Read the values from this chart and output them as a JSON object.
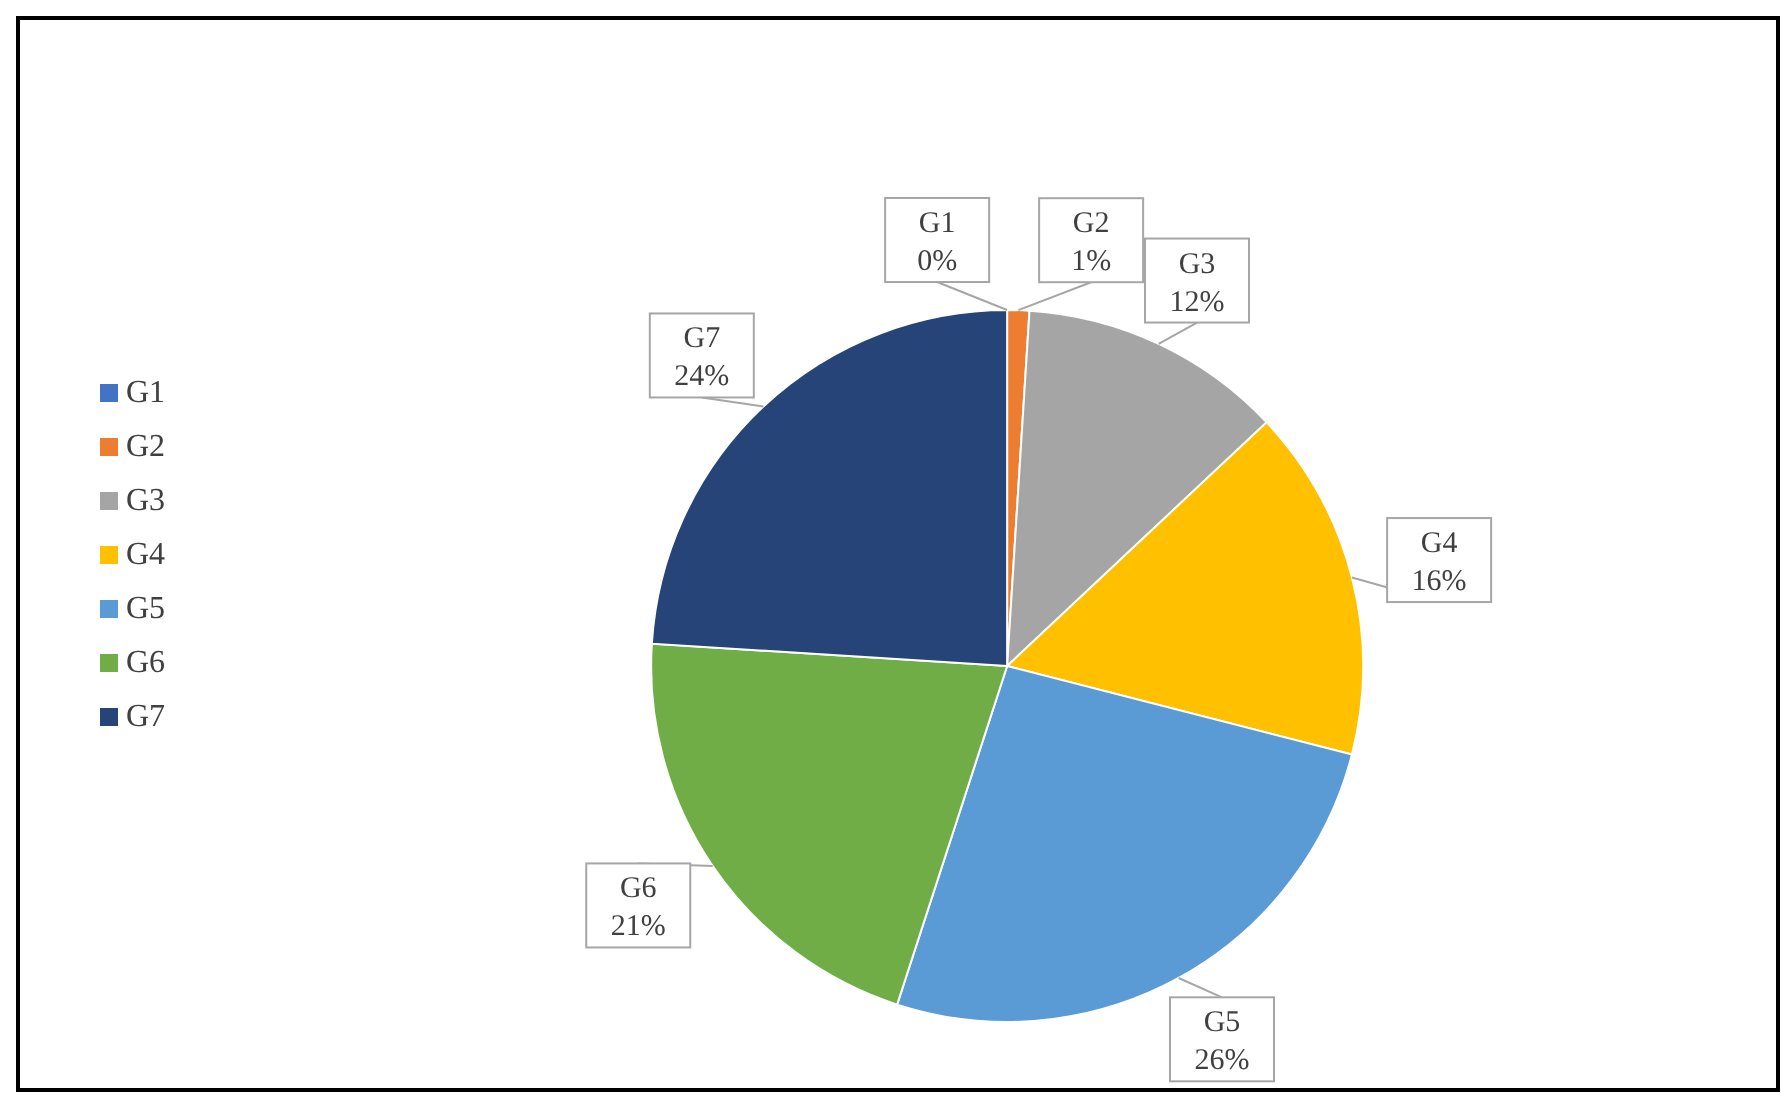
{
  "chart_data": {
    "type": "pie",
    "categories": [
      "G1",
      "G2",
      "G3",
      "G4",
      "G5",
      "G6",
      "G7"
    ],
    "values": [
      0,
      1,
      12,
      16,
      26,
      21,
      24
    ],
    "colors": [
      "#4472c4",
      "#ed7d31",
      "#a5a5a5",
      "#ffc000",
      "#5b9bd5",
      "#70ad47",
      "#264478"
    ],
    "value_labels": [
      "0%",
      "1%",
      "12%",
      "16%",
      "26%",
      "21%",
      "24%"
    ],
    "legend": "left"
  }
}
